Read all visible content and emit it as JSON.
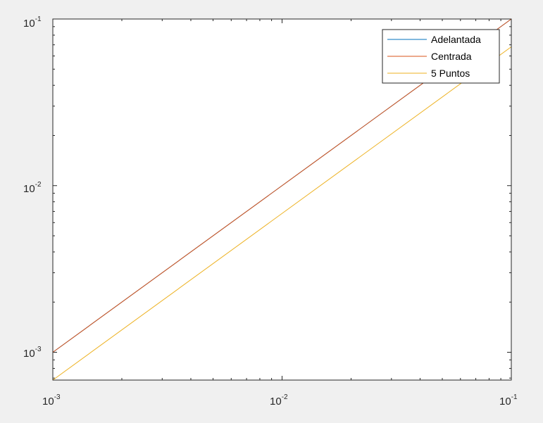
{
  "chart_data": {
    "type": "line",
    "xscale": "log",
    "yscale": "log",
    "xlim": [
      0.001,
      0.1
    ],
    "ylim": [
      0.000681,
      0.1
    ],
    "xticks": [
      {
        "value": 0.001,
        "base": "10",
        "exp": "-3"
      },
      {
        "value": 0.01,
        "base": "10",
        "exp": "-2"
      },
      {
        "value": 0.1,
        "base": "10",
        "exp": "-1"
      }
    ],
    "yticks": [
      {
        "value": 0.001,
        "base": "10",
        "exp": "-3"
      },
      {
        "value": 0.01,
        "base": "10",
        "exp": "-2"
      },
      {
        "value": 0.1,
        "base": "10",
        "exp": "-1"
      }
    ],
    "grid": false,
    "legend_position": "top-right",
    "series": [
      {
        "name": "Adelantada",
        "color": "#0072BD",
        "x": [
          0.001,
          0.1
        ],
        "y": [
          0.001,
          0.1
        ]
      },
      {
        "name": "Centrada",
        "color": "#D95319",
        "x": [
          0.001,
          0.1
        ],
        "y": [
          0.001,
          0.1
        ]
      },
      {
        "name": "5 Puntos",
        "color": "#EDB120",
        "x": [
          0.001,
          0.1
        ],
        "y": [
          0.000681,
          0.0681
        ]
      }
    ]
  }
}
